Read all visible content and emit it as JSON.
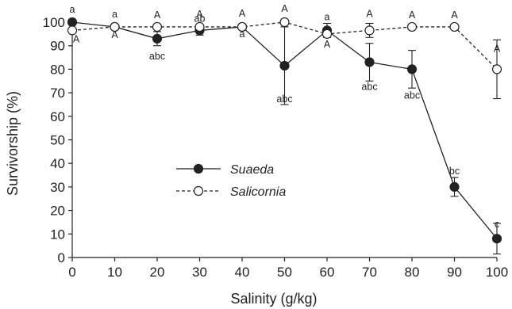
{
  "chart_data": {
    "type": "line",
    "xlabel": "Salinity (g/kg)",
    "ylabel": "Survivorship (%)",
    "xlim": [
      0,
      100
    ],
    "ylim": [
      0,
      100
    ],
    "x_ticks": [
      0,
      10,
      20,
      30,
      40,
      50,
      60,
      70,
      80,
      90,
      100
    ],
    "y_ticks": [
      0,
      10,
      20,
      30,
      40,
      50,
      60,
      70,
      80,
      90,
      100
    ],
    "grid": false,
    "legend_position": "center-left",
    "x": [
      0,
      10,
      20,
      30,
      40,
      50,
      60,
      70,
      80,
      90,
      100
    ],
    "series": [
      {
        "name": "Suaeda",
        "marker": "filled-circle",
        "line": "solid",
        "color": "#1a1a1a",
        "values": [
          100,
          98,
          93,
          96.5,
          98,
          81.5,
          96.5,
          83,
          80,
          30,
          8
        ],
        "errors": [
          0,
          0,
          3,
          2,
          0,
          16.5,
          3,
          8,
          8,
          4,
          6.5
        ],
        "letters": [
          "a",
          "a",
          "abc",
          "ab",
          "a",
          "abc",
          "a",
          "abc",
          "abc",
          "bc",
          "c"
        ]
      },
      {
        "name": "Salicornia",
        "marker": "open-circle",
        "line": "dashed",
        "color": "#1a1a1a",
        "values": [
          96.5,
          98,
          98,
          98,
          98,
          100,
          95,
          96.5,
          98,
          98,
          80
        ],
        "errors": [
          0,
          0,
          0,
          0,
          0,
          0,
          0,
          3,
          0,
          0,
          12.5
        ],
        "letters": [
          "A",
          "A",
          "A",
          "A",
          "A",
          "A",
          "A",
          "A",
          "A",
          "A",
          "A"
        ]
      }
    ]
  }
}
